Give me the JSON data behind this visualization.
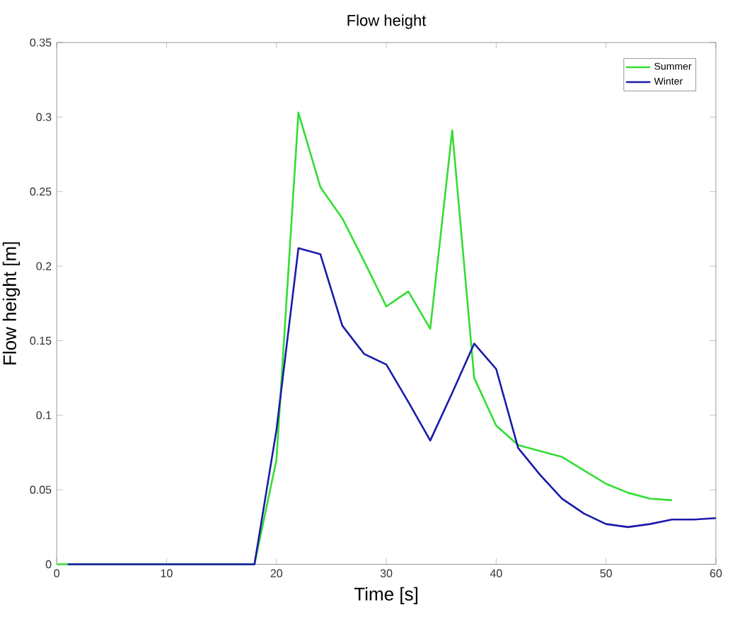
{
  "chart_data": {
    "type": "line",
    "title": "Flow height",
    "xlabel": "Time [s]",
    "ylabel": "Flow height [m]",
    "xlim": [
      0,
      60
    ],
    "ylim": [
      0,
      0.35
    ],
    "xticks": [
      0,
      10,
      20,
      30,
      40,
      50,
      60
    ],
    "yticks": [
      0,
      0.05,
      0.1,
      0.15,
      0.2,
      0.25,
      0.3,
      0.35
    ],
    "legend": "top right",
    "grid": false,
    "marker": "none",
    "line_style": "solid",
    "series": [
      {
        "name": "Summer",
        "color": "#33dd33",
        "x": [
          0,
          18,
          20,
          22,
          24,
          26,
          28,
          30,
          32,
          34,
          36,
          38,
          40,
          42,
          44,
          46,
          48,
          50,
          52,
          54,
          56
        ],
        "values": [
          0,
          0,
          0.07,
          0.303,
          0.253,
          0.232,
          0.203,
          0.173,
          0.183,
          0.158,
          0.291,
          0.125,
          0.093,
          0.08,
          0.076,
          0.072,
          0.063,
          0.054,
          0.048,
          0.044,
          0.043
        ]
      },
      {
        "name": "Winter",
        "color": "#1a1aaa",
        "x": [
          1,
          18,
          20,
          22,
          24,
          26,
          28,
          30,
          32,
          34,
          36,
          38,
          40,
          42,
          44,
          46,
          48,
          50,
          52,
          54,
          56,
          58,
          60
        ],
        "values": [
          0,
          0,
          0.09,
          0.212,
          0.208,
          0.16,
          0.141,
          0.134,
          0.109,
          0.083,
          0.115,
          0.148,
          0.131,
          0.078,
          0.06,
          0.044,
          0.034,
          0.027,
          0.025,
          0.027,
          0.03,
          0.03,
          0.031
        ]
      }
    ]
  }
}
